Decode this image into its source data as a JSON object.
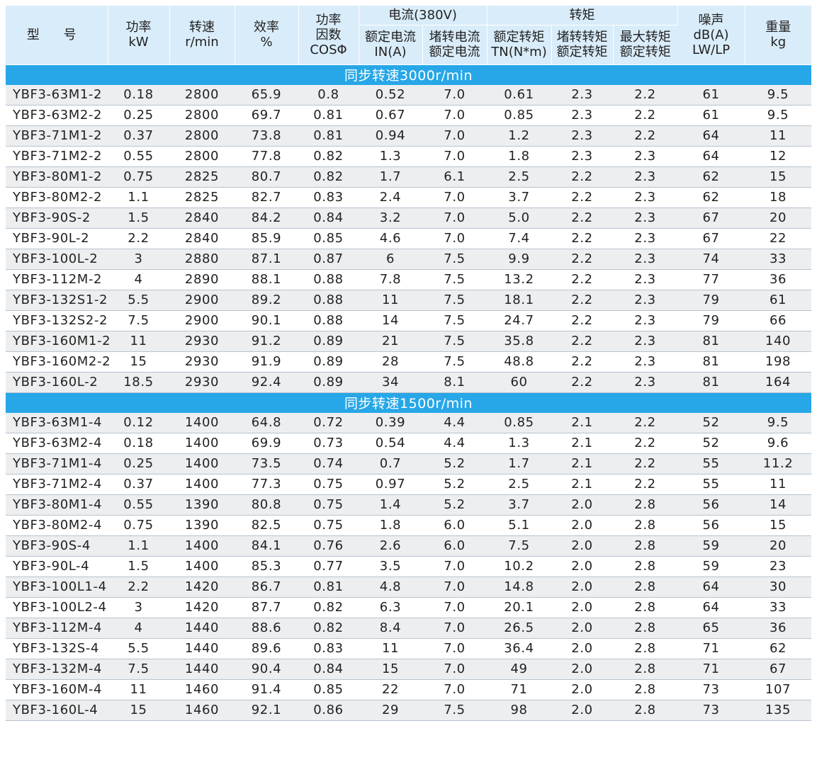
{
  "header": {
    "model": "型 号",
    "power": [
      "功率",
      "kW"
    ],
    "speed": [
      "转速",
      "r/min"
    ],
    "efficiency": [
      "效率",
      "%"
    ],
    "power_factor": [
      "功率",
      "因数",
      "COSΦ"
    ],
    "current_group": "电流(380V)",
    "rated_current": [
      "额定电流",
      "IN(A)"
    ],
    "locked_current_ratio": [
      "堵转电流",
      "额定电流"
    ],
    "torque_group": "转矩",
    "rated_torque": [
      "额定转矩",
      "TN(N*m)"
    ],
    "locked_torque_ratio": [
      "堵转转矩",
      "额定转矩"
    ],
    "max_torque_ratio": [
      "最大转矩",
      "额定转矩"
    ],
    "noise": [
      "噪声",
      "dB(A)",
      "LW/LP"
    ],
    "weight": [
      "重量",
      "kg"
    ]
  },
  "sections": [
    {
      "title": "同步转速3000r/min",
      "rows": [
        [
          "YBF3-63M1-2",
          "0.18",
          "2800",
          "65.9",
          "0.8",
          "0.52",
          "7.0",
          "0.61",
          "2.3",
          "2.2",
          "61",
          "9.5"
        ],
        [
          "YBF3-63M2-2",
          "0.25",
          "2800",
          "69.7",
          "0.81",
          "0.67",
          "7.0",
          "0.85",
          "2.3",
          "2.2",
          "61",
          "9.5"
        ],
        [
          "YBF3-71M1-2",
          "0.37",
          "2800",
          "73.8",
          "0.81",
          "0.94",
          "7.0",
          "1.2",
          "2.3",
          "2.2",
          "64",
          "11"
        ],
        [
          "YBF3-71M2-2",
          "0.55",
          "2800",
          "77.8",
          "0.82",
          "1.3",
          "7.0",
          "1.8",
          "2.3",
          "2.3",
          "64",
          "12"
        ],
        [
          "YBF3-80M1-2",
          "0.75",
          "2825",
          "80.7",
          "0.82",
          "1.7",
          "6.1",
          "2.5",
          "2.2",
          "2.3",
          "62",
          "15"
        ],
        [
          "YBF3-80M2-2",
          "1.1",
          "2825",
          "82.7",
          "0.83",
          "2.4",
          "7.0",
          "3.7",
          "2.2",
          "2.3",
          "62",
          "18"
        ],
        [
          "YBF3-90S-2",
          "1.5",
          "2840",
          "84.2",
          "0.84",
          "3.2",
          "7.0",
          "5.0",
          "2.2",
          "2.3",
          "67",
          "20"
        ],
        [
          "YBF3-90L-2",
          "2.2",
          "2840",
          "85.9",
          "0.85",
          "4.6",
          "7.0",
          "7.4",
          "2.2",
          "2.3",
          "67",
          "22"
        ],
        [
          "YBF3-100L-2",
          "3",
          "2880",
          "87.1",
          "0.87",
          "6",
          "7.5",
          "9.9",
          "2.2",
          "2.3",
          "74",
          "33"
        ],
        [
          "YBF3-112M-2",
          "4",
          "2890",
          "88.1",
          "0.88",
          "7.8",
          "7.5",
          "13.2",
          "2.2",
          "2.3",
          "77",
          "36"
        ],
        [
          "YBF3-132S1-2",
          "5.5",
          "2900",
          "89.2",
          "0.88",
          "11",
          "7.5",
          "18.1",
          "2.2",
          "2.3",
          "79",
          "61"
        ],
        [
          "YBF3-132S2-2",
          "7.5",
          "2900",
          "90.1",
          "0.88",
          "14",
          "7.5",
          "24.7",
          "2.2",
          "2.3",
          "79",
          "66"
        ],
        [
          "YBF3-160M1-2",
          "11",
          "2930",
          "91.2",
          "0.89",
          "21",
          "7.5",
          "35.8",
          "2.2",
          "2.3",
          "81",
          "140"
        ],
        [
          "YBF3-160M2-2",
          "15",
          "2930",
          "91.9",
          "0.89",
          "28",
          "7.5",
          "48.8",
          "2.2",
          "2.3",
          "81",
          "198"
        ],
        [
          "YBF3-160L-2",
          "18.5",
          "2930",
          "92.4",
          "0.89",
          "34",
          "8.1",
          "60",
          "2.2",
          "2.3",
          "81",
          "164"
        ]
      ]
    },
    {
      "title": "同步转速1500r/min",
      "rows": [
        [
          "YBF3-63M1-4",
          "0.12",
          "1400",
          "64.8",
          "0.72",
          "0.39",
          "4.4",
          "0.85",
          "2.1",
          "2.2",
          "52",
          "9.5"
        ],
        [
          "YBF3-63M2-4",
          "0.18",
          "1400",
          "69.9",
          "0.73",
          "0.54",
          "4.4",
          "1.3",
          "2.1",
          "2.2",
          "52",
          "9.6"
        ],
        [
          "YBF3-71M1-4",
          "0.25",
          "1400",
          "73.5",
          "0.74",
          "0.7",
          "5.2",
          "1.7",
          "2.1",
          "2.2",
          "55",
          "11.2"
        ],
        [
          "YBF3-71M2-4",
          "0.37",
          "1400",
          "77.3",
          "0.75",
          "0.97",
          "5.2",
          "2.5",
          "2.1",
          "2.2",
          "55",
          "11"
        ],
        [
          "YBF3-80M1-4",
          "0.55",
          "1390",
          "80.8",
          "0.75",
          "1.4",
          "5.2",
          "3.7",
          "2.0",
          "2.8",
          "56",
          "14"
        ],
        [
          "YBF3-80M2-4",
          "0.75",
          "1390",
          "82.5",
          "0.75",
          "1.8",
          "6.0",
          "5.1",
          "2.0",
          "2.8",
          "56",
          "15"
        ],
        [
          "YBF3-90S-4",
          "1.1",
          "1400",
          "84.1",
          "0.76",
          "2.6",
          "6.0",
          "7.5",
          "2.0",
          "2.8",
          "59",
          "20"
        ],
        [
          "YBF3-90L-4",
          "1.5",
          "1400",
          "85.3",
          "0.77",
          "3.5",
          "7.0",
          "10.2",
          "2.0",
          "2.8",
          "59",
          "23"
        ],
        [
          "YBF3-100L1-4",
          "2.2",
          "1420",
          "86.7",
          "0.81",
          "4.8",
          "7.0",
          "14.8",
          "2.0",
          "2.8",
          "64",
          "30"
        ],
        [
          "YBF3-100L2-4",
          "3",
          "1420",
          "87.7",
          "0.82",
          "6.3",
          "7.0",
          "20.1",
          "2.0",
          "2.8",
          "64",
          "33"
        ],
        [
          "YBF3-112M-4",
          "4",
          "1440",
          "88.6",
          "0.82",
          "8.4",
          "7.0",
          "26.5",
          "2.0",
          "2.8",
          "65",
          "36"
        ],
        [
          "YBF3-132S-4",
          "5.5",
          "1440",
          "89.6",
          "0.83",
          "11",
          "7.0",
          "36.4",
          "2.0",
          "2.8",
          "71",
          "62"
        ],
        [
          "YBF3-132M-4",
          "7.5",
          "1440",
          "90.4",
          "0.84",
          "15",
          "7.0",
          "49",
          "2.0",
          "2.8",
          "71",
          "67"
        ],
        [
          "YBF3-160M-4",
          "11",
          "1460",
          "91.4",
          "0.85",
          "22",
          "7.0",
          "71",
          "2.0",
          "2.8",
          "73",
          "107"
        ],
        [
          "YBF3-160L-4",
          "15",
          "1460",
          "92.1",
          "0.86",
          "29",
          "7.5",
          "98",
          "2.0",
          "2.8",
          "73",
          "135"
        ]
      ]
    }
  ]
}
